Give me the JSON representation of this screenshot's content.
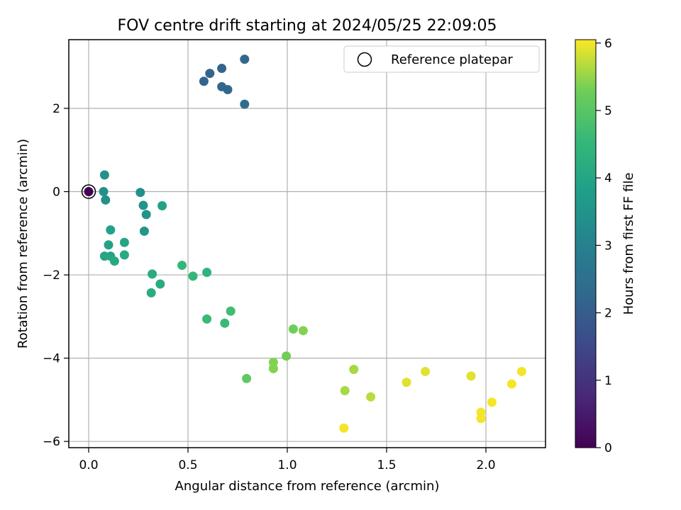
{
  "chart_data": {
    "type": "scatter",
    "title": "FOV centre drift starting at 2024/05/25 22:09:05",
    "xlabel": "Angular distance from reference (arcmin)",
    "ylabel": "Rotation from reference (arcmin)",
    "xlim": [
      -0.1,
      2.3
    ],
    "ylim": [
      -6.15,
      3.65
    ],
    "xticks": [
      0.0,
      0.5,
      1.0,
      1.5,
      2.0
    ],
    "xtick_labels": [
      "0.0",
      "0.5",
      "1.0",
      "1.5",
      "2.0"
    ],
    "yticks": [
      -6,
      -4,
      -2,
      0,
      2
    ],
    "ytick_labels": [
      "−6",
      "−4",
      "−2",
      "0",
      "2"
    ],
    "grid": true,
    "legend": {
      "position": "top-right",
      "entries": [
        "Reference platepar"
      ]
    },
    "colorbar": {
      "label": "Hours from first FF file",
      "colormap": "viridis",
      "range": [
        0,
        6.05
      ],
      "ticks": [
        0,
        1,
        2,
        3,
        4,
        5,
        6
      ],
      "tick_labels": [
        "0",
        "1",
        "2",
        "3",
        "4",
        "5",
        "6"
      ]
    },
    "reference_point": {
      "x": 0.0,
      "y": 0.0
    },
    "points": [
      {
        "x": 0.0,
        "y": 0.0,
        "t": 0.0
      },
      {
        "x": 0.58,
        "y": 2.65,
        "t": 2.2
      },
      {
        "x": 0.61,
        "y": 2.84,
        "t": 2.2
      },
      {
        "x": 0.67,
        "y": 2.96,
        "t": 2.2
      },
      {
        "x": 0.67,
        "y": 2.52,
        "t": 2.3
      },
      {
        "x": 0.7,
        "y": 2.45,
        "t": 2.3
      },
      {
        "x": 0.785,
        "y": 3.18,
        "t": 2.3
      },
      {
        "x": 0.785,
        "y": 2.1,
        "t": 2.4
      },
      {
        "x": 0.08,
        "y": 0.4,
        "t": 3.4
      },
      {
        "x": 0.075,
        "y": 0.0,
        "t": 3.4
      },
      {
        "x": 0.085,
        "y": -0.2,
        "t": 3.4
      },
      {
        "x": 0.26,
        "y": -0.02,
        "t": 3.4
      },
      {
        "x": 0.275,
        "y": -0.33,
        "t": 3.5
      },
      {
        "x": 0.29,
        "y": -0.55,
        "t": 3.5
      },
      {
        "x": 0.28,
        "y": -0.95,
        "t": 3.6
      },
      {
        "x": 0.37,
        "y": -0.34,
        "t": 3.9
      },
      {
        "x": 0.11,
        "y": -0.92,
        "t": 3.9
      },
      {
        "x": 0.1,
        "y": -1.28,
        "t": 3.9
      },
      {
        "x": 0.18,
        "y": -1.22,
        "t": 4.0
      },
      {
        "x": 0.08,
        "y": -1.55,
        "t": 4.0
      },
      {
        "x": 0.11,
        "y": -1.55,
        "t": 4.0
      },
      {
        "x": 0.13,
        "y": -1.67,
        "t": 4.1
      },
      {
        "x": 0.18,
        "y": -1.52,
        "t": 4.1
      },
      {
        "x": 0.32,
        "y": -1.98,
        "t": 4.2
      },
      {
        "x": 0.36,
        "y": -2.22,
        "t": 4.2
      },
      {
        "x": 0.315,
        "y": -2.43,
        "t": 4.2
      },
      {
        "x": 0.47,
        "y": -1.77,
        "t": 4.5
      },
      {
        "x": 0.525,
        "y": -2.03,
        "t": 4.5
      },
      {
        "x": 0.595,
        "y": -1.94,
        "t": 4.4
      },
      {
        "x": 0.595,
        "y": -3.06,
        "t": 4.6
      },
      {
        "x": 0.685,
        "y": -3.16,
        "t": 4.6
      },
      {
        "x": 0.715,
        "y": -2.87,
        "t": 4.7
      },
      {
        "x": 0.795,
        "y": -4.49,
        "t": 5.1
      },
      {
        "x": 0.93,
        "y": -4.1,
        "t": 5.4
      },
      {
        "x": 0.93,
        "y": -4.25,
        "t": 5.4
      },
      {
        "x": 0.995,
        "y": -3.95,
        "t": 5.3
      },
      {
        "x": 1.03,
        "y": -3.3,
        "t": 5.3
      },
      {
        "x": 1.08,
        "y": -3.34,
        "t": 5.4
      },
      {
        "x": 1.285,
        "y": -5.68,
        "t": 6.0
      },
      {
        "x": 1.29,
        "y": -4.78,
        "t": 5.6
      },
      {
        "x": 1.335,
        "y": -4.27,
        "t": 5.6
      },
      {
        "x": 1.42,
        "y": -4.93,
        "t": 5.7
      },
      {
        "x": 1.6,
        "y": -4.58,
        "t": 5.9
      },
      {
        "x": 1.695,
        "y": -4.32,
        "t": 5.9
      },
      {
        "x": 1.925,
        "y": -4.43,
        "t": 5.9
      },
      {
        "x": 1.975,
        "y": -5.3,
        "t": 6.0
      },
      {
        "x": 1.975,
        "y": -5.45,
        "t": 6.0
      },
      {
        "x": 2.03,
        "y": -5.06,
        "t": 6.0
      },
      {
        "x": 2.13,
        "y": -4.62,
        "t": 6.0
      },
      {
        "x": 2.18,
        "y": -4.32,
        "t": 6.0
      }
    ]
  }
}
